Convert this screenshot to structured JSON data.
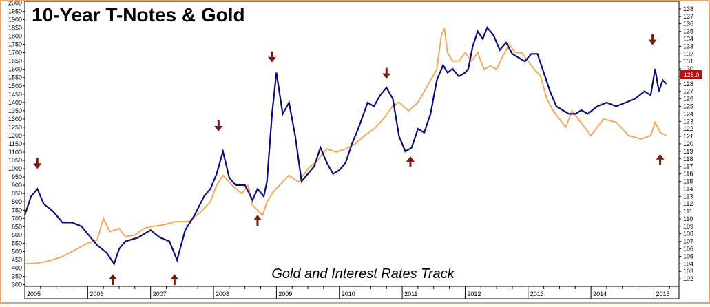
{
  "chart_data": {
    "type": "line",
    "title": "10-Year T-Notes & Gold",
    "annotation": "Gold and Interest Rates Track",
    "x_tick_labels": [
      "2005",
      "2006",
      "2007",
      "2008",
      "2009",
      "2010",
      "2011",
      "2012",
      "2013",
      "2014",
      "2015"
    ],
    "x_range": [
      2005.0,
      2015.4
    ],
    "left_axis": {
      "ylim": [
        290,
        2010
      ],
      "tick_labels": [
        "300",
        "350",
        "400",
        "450",
        "500",
        "550",
        "600",
        "650",
        "700",
        "750",
        "800",
        "850",
        "900",
        "950",
        "1000",
        "1050",
        "1100",
        "1150",
        "1200",
        "1250",
        "1300",
        "1350",
        "1400",
        "1450",
        "1500",
        "1550",
        "1600",
        "1650",
        "1700",
        "1750",
        "1800",
        "1850",
        "1900",
        "1950",
        "2000"
      ]
    },
    "right_axis": {
      "ylim": [
        101,
        139
      ],
      "tick_labels": [
        "102",
        "103",
        "104",
        "105",
        "106",
        "107",
        "108",
        "109",
        "110",
        "111",
        "112",
        "113",
        "114",
        "115",
        "116",
        "117",
        "118",
        "119",
        "120",
        "121",
        "122",
        "123",
        "124",
        "125",
        "126",
        "127",
        "128",
        "129",
        "130",
        "131",
        "132",
        "133",
        "134",
        "135",
        "136",
        "137",
        "138"
      ],
      "last_value_label": "128.0"
    },
    "colors": {
      "tnotes": "#0b0b7a",
      "gold": "#f6a85a",
      "arrow": "#7a1a10",
      "frame": "#f0a060",
      "last_value_box": "#b31010"
    },
    "series": [
      {
        "key": "tnotes",
        "axis": "right",
        "x": [
          2005.0,
          2005.1,
          2005.2,
          2005.3,
          2005.45,
          2005.6,
          2005.75,
          2005.9,
          2006.0,
          2006.15,
          2006.3,
          2006.42,
          2006.5,
          2006.6,
          2006.8,
          2007.0,
          2007.15,
          2007.3,
          2007.42,
          2007.55,
          2007.7,
          2007.85,
          2007.95,
          2008.05,
          2008.15,
          2008.25,
          2008.35,
          2008.5,
          2008.62,
          2008.7,
          2008.8,
          2008.85,
          2008.93,
          2009.0,
          2009.1,
          2009.2,
          2009.3,
          2009.4,
          2009.5,
          2009.6,
          2009.7,
          2009.8,
          2009.9,
          2010.0,
          2010.1,
          2010.2,
          2010.3,
          2010.45,
          2010.55,
          2010.65,
          2010.75,
          2010.85,
          2010.95,
          2011.05,
          2011.15,
          2011.25,
          2011.35,
          2011.45,
          2011.55,
          2011.65,
          2011.72,
          2011.8,
          2011.9,
          2012.0,
          2012.05,
          2012.12,
          2012.2,
          2012.28,
          2012.35,
          2012.45,
          2012.55,
          2012.65,
          2012.75,
          2012.85,
          2012.95,
          2013.05,
          2013.15,
          2013.25,
          2013.35,
          2013.45,
          2013.55,
          2013.65,
          2013.75,
          2013.85,
          2013.95,
          2014.1,
          2014.25,
          2014.4,
          2014.55,
          2014.7,
          2014.85,
          2014.95,
          2015.02,
          2015.08,
          2015.14,
          2015.2
        ],
        "y": [
          110.5,
          113.0,
          114.0,
          112.0,
          111.0,
          109.5,
          109.5,
          109.0,
          108.0,
          106.5,
          105.5,
          104.0,
          106.0,
          107.0,
          107.5,
          108.5,
          107.5,
          107.0,
          104.5,
          108.5,
          110.5,
          113.0,
          114.0,
          116.0,
          119.0,
          115.5,
          114.5,
          114.5,
          112.5,
          114.0,
          113.0,
          115.0,
          124.0,
          129.5,
          124.0,
          125.5,
          121.0,
          115.0,
          116.0,
          117.0,
          119.5,
          117.5,
          116.0,
          116.5,
          117.5,
          120.0,
          122.0,
          125.5,
          125.0,
          126.5,
          127.5,
          126.0,
          121.0,
          119.0,
          119.5,
          122.0,
          121.5,
          124.0,
          128.5,
          130.5,
          129.5,
          130.0,
          129.0,
          129.5,
          130.0,
          133.0,
          135.0,
          134.0,
          135.5,
          134.5,
          132.5,
          133.5,
          132.0,
          131.5,
          131.0,
          132.0,
          132.0,
          129.5,
          127.0,
          125.0,
          124.5,
          124.0,
          124.0,
          124.5,
          124.0,
          125.0,
          125.5,
          125.0,
          125.5,
          126.0,
          127.0,
          126.5,
          130.0,
          127.0,
          128.5,
          128.0
        ]
      },
      {
        "key": "gold",
        "axis": "left",
        "x": [
          2005.0,
          2005.2,
          2005.4,
          2005.6,
          2005.8,
          2006.0,
          2006.15,
          2006.25,
          2006.35,
          2006.5,
          2006.6,
          2006.75,
          2006.9,
          2007.0,
          2007.2,
          2007.4,
          2007.6,
          2007.8,
          2007.95,
          2008.05,
          2008.15,
          2008.25,
          2008.35,
          2008.45,
          2008.55,
          2008.62,
          2008.7,
          2008.78,
          2008.85,
          2008.95,
          2009.05,
          2009.2,
          2009.35,
          2009.5,
          2009.65,
          2009.8,
          2009.95,
          2010.1,
          2010.25,
          2010.4,
          2010.55,
          2010.7,
          2010.85,
          2010.95,
          2011.1,
          2011.25,
          2011.4,
          2011.55,
          2011.62,
          2011.67,
          2011.72,
          2011.8,
          2011.9,
          2012.0,
          2012.1,
          2012.2,
          2012.3,
          2012.4,
          2012.5,
          2012.6,
          2012.7,
          2012.8,
          2012.9,
          2013.0,
          2013.1,
          2013.2,
          2013.3,
          2013.4,
          2013.5,
          2013.6,
          2013.7,
          2013.8,
          2013.9,
          2014.0,
          2014.2,
          2014.4,
          2014.6,
          2014.8,
          2014.95,
          2015.02,
          2015.1,
          2015.2
        ],
        "y": [
          425,
          430,
          445,
          470,
          510,
          550,
          570,
          700,
          620,
          640,
          590,
          600,
          640,
          650,
          660,
          680,
          680,
          740,
          800,
          900,
          960,
          920,
          880,
          850,
          900,
          780,
          750,
          720,
          800,
          860,
          900,
          960,
          920,
          1000,
          1050,
          1120,
          1100,
          1120,
          1150,
          1200,
          1240,
          1300,
          1380,
          1400,
          1350,
          1400,
          1500,
          1600,
          1800,
          1850,
          1700,
          1650,
          1650,
          1700,
          1650,
          1700,
          1600,
          1620,
          1600,
          1680,
          1750,
          1700,
          1700,
          1650,
          1600,
          1560,
          1420,
          1350,
          1300,
          1250,
          1350,
          1300,
          1250,
          1200,
          1300,
          1280,
          1200,
          1180,
          1200,
          1280,
          1220,
          1200
        ]
      }
    ],
    "arrows": [
      {
        "direction": "down",
        "x": 2005.2,
        "y_right": 117.3
      },
      {
        "direction": "up",
        "x": 2006.4,
        "y_right": 102.0
      },
      {
        "direction": "up",
        "x": 2007.38,
        "y_right": 102.0
      },
      {
        "direction": "down",
        "x": 2008.08,
        "y_right": 122.3
      },
      {
        "direction": "up",
        "x": 2008.7,
        "y_right": 109.9
      },
      {
        "direction": "down",
        "x": 2008.93,
        "y_right": 131.5
      },
      {
        "direction": "down",
        "x": 2010.75,
        "y_right": 129.3
      },
      {
        "direction": "up",
        "x": 2011.13,
        "y_right": 117.7
      },
      {
        "direction": "down",
        "x": 2014.98,
        "y_right": 133.8
      },
      {
        "direction": "up",
        "x": 2015.1,
        "y_right": 118.0
      }
    ]
  }
}
